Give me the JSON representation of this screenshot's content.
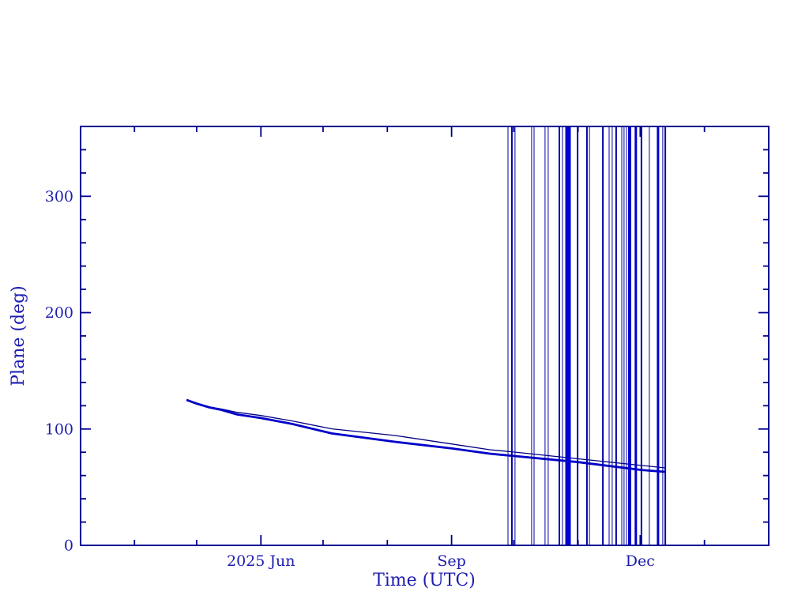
{
  "page": {
    "background": "#ffffff",
    "description": "Scientific line plot of orbital plane angle versus time"
  },
  "chart_data": {
    "type": "line",
    "title": "",
    "xlabel": "Time (UTC)",
    "ylabel": "Plane (deg)",
    "grid": false,
    "legend": null,
    "plot_bg": "#ffffff",
    "axis_color": "#000091",
    "label_color": "#1c1cb0",
    "x_axis": {
      "unit": "days since 2025-01-01",
      "domain": [
        64,
        396
      ],
      "major_ticks": [
        {
          "day": 151,
          "label": "2025 Jun"
        },
        {
          "day": 243,
          "label": "Sep"
        },
        {
          "day": 334,
          "label": "Dec"
        }
      ],
      "minor_ticks": [
        90,
        120,
        181,
        212,
        273,
        304,
        365,
        396
      ]
    },
    "y_axis": {
      "domain": [
        0,
        360
      ],
      "major_ticks": [
        {
          "value": 0,
          "label": "0"
        },
        {
          "value": 100,
          "label": "100"
        },
        {
          "value": 200,
          "label": "200"
        },
        {
          "value": 300,
          "label": "300"
        }
      ],
      "minor_step": 20
    },
    "series": [
      {
        "name": "plane-angle-upper",
        "color": "#000083",
        "stroke_width": 1.3,
        "points": [
          [
            115.1,
            125.0
          ],
          [
            120,
            122.3
          ],
          [
            126,
            119.0
          ],
          [
            132,
            117.2
          ],
          [
            139.5,
            114.3
          ],
          [
            150.9,
            111.6
          ],
          [
            166.1,
            106.9
          ],
          [
            185.2,
            100.1
          ],
          [
            215.7,
            94.4
          ],
          [
            243.2,
            87.1
          ],
          [
            261.4,
            82.2
          ],
          [
            272.9,
            80.2
          ],
          [
            304.1,
            74.4
          ],
          [
            334.6,
            68.7
          ],
          [
            346.1,
            66.6
          ]
        ]
      },
      {
        "name": "plane-angle-lower",
        "color": "#0000c9",
        "stroke_width": 2.8,
        "points": [
          [
            115.1,
            125.0
          ],
          [
            120,
            121.8
          ],
          [
            126,
            118.6
          ],
          [
            132,
            116.4
          ],
          [
            139.5,
            112.5
          ],
          [
            150.9,
            109.4
          ],
          [
            166.1,
            104.3
          ],
          [
            185.2,
            96.2
          ],
          [
            215.7,
            89.0
          ],
          [
            243.2,
            83.3
          ],
          [
            261.4,
            78.8
          ],
          [
            272.9,
            76.8
          ],
          [
            304.1,
            71.5
          ],
          [
            334.6,
            64.8
          ],
          [
            346.1,
            63.2
          ]
        ]
      }
    ],
    "event_lines": {
      "description": "full-height vertical lines (plane-crossing events)",
      "color_thin": "#0000a6",
      "color_wide": "#0000d0",
      "lines": [
        {
          "day": 270.2,
          "w": 1
        },
        {
          "day": 272.1,
          "w": 2
        },
        {
          "day": 273.6,
          "w": 1
        },
        {
          "day": 281.6,
          "w": 1
        },
        {
          "day": 282.8,
          "w": 1
        },
        {
          "day": 288.1,
          "w": 1
        },
        {
          "day": 289.6,
          "w": 1
        },
        {
          "day": 295.0,
          "w": 2
        },
        {
          "day": 296.5,
          "w": 1
        },
        {
          "day": 299.2,
          "w": 7
        },
        {
          "day": 303.8,
          "w": 2
        },
        {
          "day": 308.3,
          "w": 2
        },
        {
          "day": 309.5,
          "w": 1
        },
        {
          "day": 316.0,
          "w": 2
        },
        {
          "day": 319.0,
          "w": 1
        },
        {
          "day": 320.5,
          "w": 1
        },
        {
          "day": 322.4,
          "w": 2
        },
        {
          "day": 325.1,
          "w": 1
        },
        {
          "day": 326.2,
          "w": 1
        },
        {
          "day": 327.4,
          "w": 1
        },
        {
          "day": 328.9,
          "w": 4
        },
        {
          "day": 331.9,
          "w": 3
        },
        {
          "day": 334.6,
          "w": 2
        },
        {
          "day": 338.4,
          "w": 1
        },
        {
          "day": 342.6,
          "w": 3
        },
        {
          "day": 344.9,
          "w": 1
        },
        {
          "day": 346.1,
          "w": 2
        }
      ]
    }
  }
}
